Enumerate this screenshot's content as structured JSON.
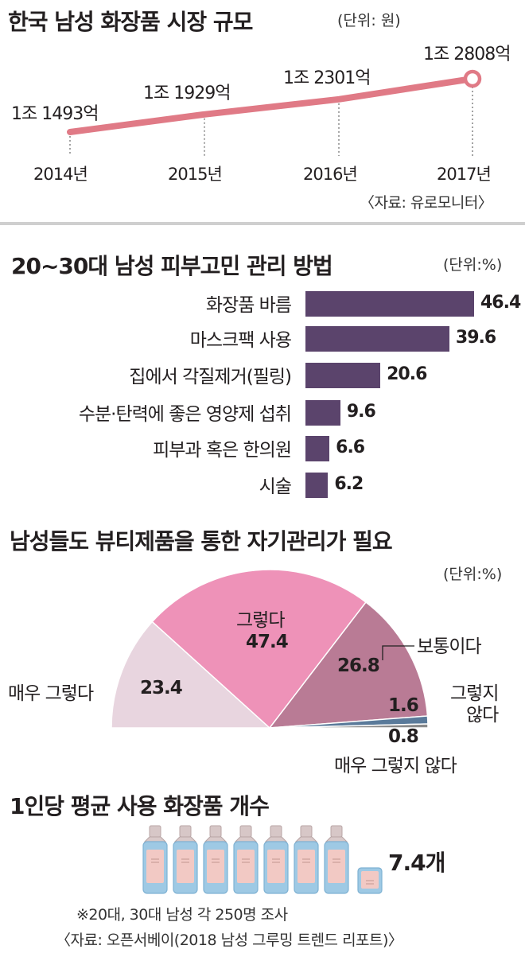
{
  "section1": {
    "title": "한국 남성 화장품 시장 규모",
    "unit": "(단위: 원)",
    "source": "〈자료: 유로모니터〉",
    "line_color": "#e07a86",
    "chart_data": {
      "type": "line",
      "categories": [
        "2014년",
        "2015년",
        "2016년",
        "2017년"
      ],
      "value_labels": [
        "1조 1493억",
        "1조 1929억",
        "1조 2301억",
        "1조 2808억"
      ],
      "values": [
        11493,
        11929,
        12301,
        12808
      ]
    }
  },
  "section2": {
    "title": "20~30대 남성 피부고민 관리 방법",
    "unit": "(단위:%)",
    "bar_color": "#5b446c",
    "chart_data": {
      "type": "bar",
      "categories": [
        "화장품 바름",
        "마스크팩 사용",
        "집에서 각질제거(필링)",
        "수분·탄력에 좋은 영양제 섭취",
        "피부과 혹은 한의원",
        "시술"
      ],
      "values": [
        46.4,
        39.6,
        20.6,
        9.6,
        6.6,
        6.2
      ]
    }
  },
  "section3": {
    "title": "남성들도 뷰티제품을 통한 자기관리가 필요",
    "unit": "(단위:%)",
    "chart_data": {
      "type": "pie",
      "categories": [
        "매우 그렇다",
        "그렇다",
        "보통이다",
        "그렇지 않다",
        "매우 그렇지 않다"
      ],
      "values": [
        23.4,
        47.4,
        26.8,
        1.6,
        0.8
      ],
      "value_labels": [
        "23.4",
        "47.4",
        "26.8",
        "1.6",
        "0.8"
      ],
      "colors": [
        "#e8d5df",
        "#ee92b8",
        "#b97b95",
        "#5a7a9a",
        "#8a8a8a"
      ]
    },
    "label_not": "그렇지",
    "label_not2": "않다"
  },
  "section4": {
    "title": "1인당 평균 사용 화장품 개수",
    "value": 7.4,
    "value_label": "7.4개",
    "note": "※20대, 30대 남성 각 250명 조사",
    "source": "〈자료: 오픈서베이(2018 남성 그루밍 트렌드 리포트)〉"
  }
}
